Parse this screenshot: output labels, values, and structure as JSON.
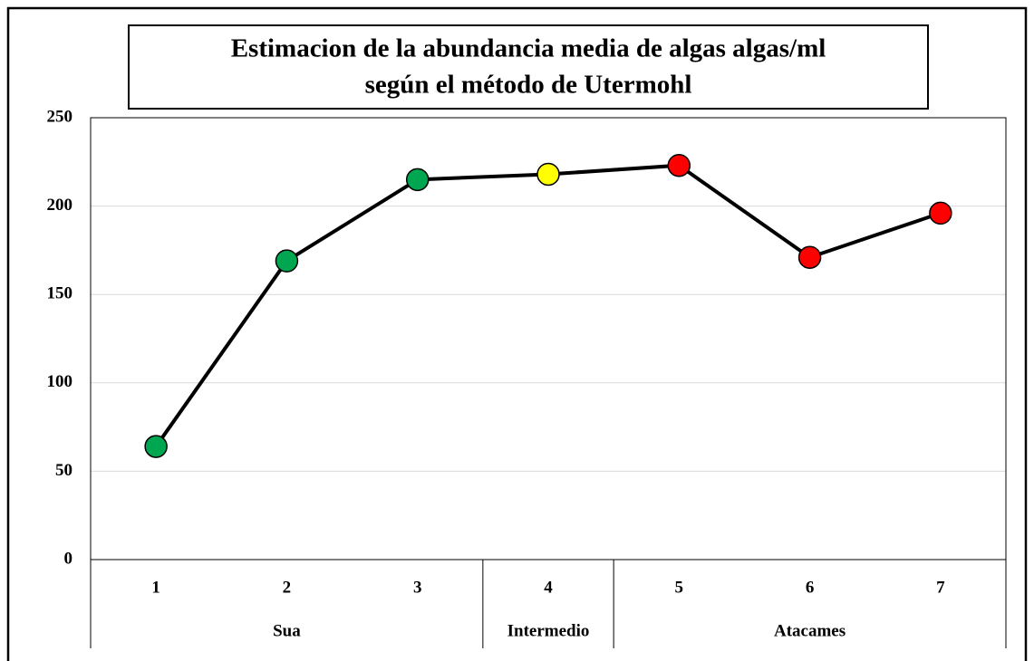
{
  "chart_data": {
    "type": "line",
    "title_lines": [
      "Estimacion de la abundancia media de algas algas/ml",
      "según el método de Utermohl"
    ],
    "categories": [
      "1",
      "2",
      "3",
      "4",
      "5",
      "6",
      "7"
    ],
    "x_groups": [
      {
        "label": "Sua",
        "categories": [
          "1",
          "2",
          "3"
        ]
      },
      {
        "label": "Intermedio",
        "categories": [
          "4"
        ]
      },
      {
        "label": "Atacames",
        "categories": [
          "5",
          "6",
          "7"
        ]
      }
    ],
    "series": [
      {
        "color": "#000000",
        "marker_colors": [
          "#00a650",
          "#00a650",
          "#00a650",
          "#ffff00",
          "#ff0000",
          "#ff0000",
          "#ff0000"
        ],
        "values": [
          64,
          169,
          215,
          218,
          223,
          171,
          196
        ]
      }
    ],
    "ylim": [
      0,
      250
    ],
    "yticks": [
      0,
      50,
      100,
      150,
      200,
      250
    ],
    "grid": true
  }
}
